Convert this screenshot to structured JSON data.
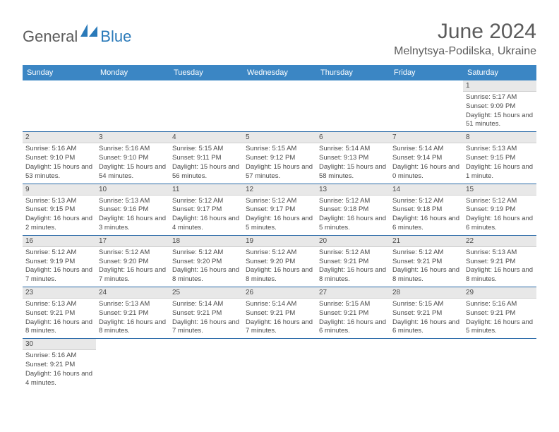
{
  "logo": {
    "text1": "General",
    "text2": "Blue",
    "accent_color": "#2a7ab9",
    "gray_color": "#5b5b5b"
  },
  "title": "June 2024",
  "location": "Melnytsya-Podilska, Ukraine",
  "header_bg": "#3b86c4",
  "day_header_bg": "#e8e8e8",
  "border_color": "#2a6aa8",
  "dow": [
    "Sunday",
    "Monday",
    "Tuesday",
    "Wednesday",
    "Thursday",
    "Friday",
    "Saturday"
  ],
  "weeks": [
    [
      null,
      null,
      null,
      null,
      null,
      null,
      {
        "n": "1",
        "sr": "Sunrise: 5:17 AM",
        "ss": "Sunset: 9:09 PM",
        "dl": "Daylight: 15 hours and 51 minutes."
      }
    ],
    [
      {
        "n": "2",
        "sr": "Sunrise: 5:16 AM",
        "ss": "Sunset: 9:10 PM",
        "dl": "Daylight: 15 hours and 53 minutes."
      },
      {
        "n": "3",
        "sr": "Sunrise: 5:16 AM",
        "ss": "Sunset: 9:10 PM",
        "dl": "Daylight: 15 hours and 54 minutes."
      },
      {
        "n": "4",
        "sr": "Sunrise: 5:15 AM",
        "ss": "Sunset: 9:11 PM",
        "dl": "Daylight: 15 hours and 56 minutes."
      },
      {
        "n": "5",
        "sr": "Sunrise: 5:15 AM",
        "ss": "Sunset: 9:12 PM",
        "dl": "Daylight: 15 hours and 57 minutes."
      },
      {
        "n": "6",
        "sr": "Sunrise: 5:14 AM",
        "ss": "Sunset: 9:13 PM",
        "dl": "Daylight: 15 hours and 58 minutes."
      },
      {
        "n": "7",
        "sr": "Sunrise: 5:14 AM",
        "ss": "Sunset: 9:14 PM",
        "dl": "Daylight: 16 hours and 0 minutes."
      },
      {
        "n": "8",
        "sr": "Sunrise: 5:13 AM",
        "ss": "Sunset: 9:15 PM",
        "dl": "Daylight: 16 hours and 1 minute."
      }
    ],
    [
      {
        "n": "9",
        "sr": "Sunrise: 5:13 AM",
        "ss": "Sunset: 9:15 PM",
        "dl": "Daylight: 16 hours and 2 minutes."
      },
      {
        "n": "10",
        "sr": "Sunrise: 5:13 AM",
        "ss": "Sunset: 9:16 PM",
        "dl": "Daylight: 16 hours and 3 minutes."
      },
      {
        "n": "11",
        "sr": "Sunrise: 5:12 AM",
        "ss": "Sunset: 9:17 PM",
        "dl": "Daylight: 16 hours and 4 minutes."
      },
      {
        "n": "12",
        "sr": "Sunrise: 5:12 AM",
        "ss": "Sunset: 9:17 PM",
        "dl": "Daylight: 16 hours and 5 minutes."
      },
      {
        "n": "13",
        "sr": "Sunrise: 5:12 AM",
        "ss": "Sunset: 9:18 PM",
        "dl": "Daylight: 16 hours and 5 minutes."
      },
      {
        "n": "14",
        "sr": "Sunrise: 5:12 AM",
        "ss": "Sunset: 9:18 PM",
        "dl": "Daylight: 16 hours and 6 minutes."
      },
      {
        "n": "15",
        "sr": "Sunrise: 5:12 AM",
        "ss": "Sunset: 9:19 PM",
        "dl": "Daylight: 16 hours and 6 minutes."
      }
    ],
    [
      {
        "n": "16",
        "sr": "Sunrise: 5:12 AM",
        "ss": "Sunset: 9:19 PM",
        "dl": "Daylight: 16 hours and 7 minutes."
      },
      {
        "n": "17",
        "sr": "Sunrise: 5:12 AM",
        "ss": "Sunset: 9:20 PM",
        "dl": "Daylight: 16 hours and 7 minutes."
      },
      {
        "n": "18",
        "sr": "Sunrise: 5:12 AM",
        "ss": "Sunset: 9:20 PM",
        "dl": "Daylight: 16 hours and 8 minutes."
      },
      {
        "n": "19",
        "sr": "Sunrise: 5:12 AM",
        "ss": "Sunset: 9:20 PM",
        "dl": "Daylight: 16 hours and 8 minutes."
      },
      {
        "n": "20",
        "sr": "Sunrise: 5:12 AM",
        "ss": "Sunset: 9:21 PM",
        "dl": "Daylight: 16 hours and 8 minutes."
      },
      {
        "n": "21",
        "sr": "Sunrise: 5:12 AM",
        "ss": "Sunset: 9:21 PM",
        "dl": "Daylight: 16 hours and 8 minutes."
      },
      {
        "n": "22",
        "sr": "Sunrise: 5:13 AM",
        "ss": "Sunset: 9:21 PM",
        "dl": "Daylight: 16 hours and 8 minutes."
      }
    ],
    [
      {
        "n": "23",
        "sr": "Sunrise: 5:13 AM",
        "ss": "Sunset: 9:21 PM",
        "dl": "Daylight: 16 hours and 8 minutes."
      },
      {
        "n": "24",
        "sr": "Sunrise: 5:13 AM",
        "ss": "Sunset: 9:21 PM",
        "dl": "Daylight: 16 hours and 8 minutes."
      },
      {
        "n": "25",
        "sr": "Sunrise: 5:14 AM",
        "ss": "Sunset: 9:21 PM",
        "dl": "Daylight: 16 hours and 7 minutes."
      },
      {
        "n": "26",
        "sr": "Sunrise: 5:14 AM",
        "ss": "Sunset: 9:21 PM",
        "dl": "Daylight: 16 hours and 7 minutes."
      },
      {
        "n": "27",
        "sr": "Sunrise: 5:15 AM",
        "ss": "Sunset: 9:21 PM",
        "dl": "Daylight: 16 hours and 6 minutes."
      },
      {
        "n": "28",
        "sr": "Sunrise: 5:15 AM",
        "ss": "Sunset: 9:21 PM",
        "dl": "Daylight: 16 hours and 6 minutes."
      },
      {
        "n": "29",
        "sr": "Sunrise: 5:16 AM",
        "ss": "Sunset: 9:21 PM",
        "dl": "Daylight: 16 hours and 5 minutes."
      }
    ],
    [
      {
        "n": "30",
        "sr": "Sunrise: 5:16 AM",
        "ss": "Sunset: 9:21 PM",
        "dl": "Daylight: 16 hours and 4 minutes."
      },
      null,
      null,
      null,
      null,
      null,
      null
    ]
  ]
}
